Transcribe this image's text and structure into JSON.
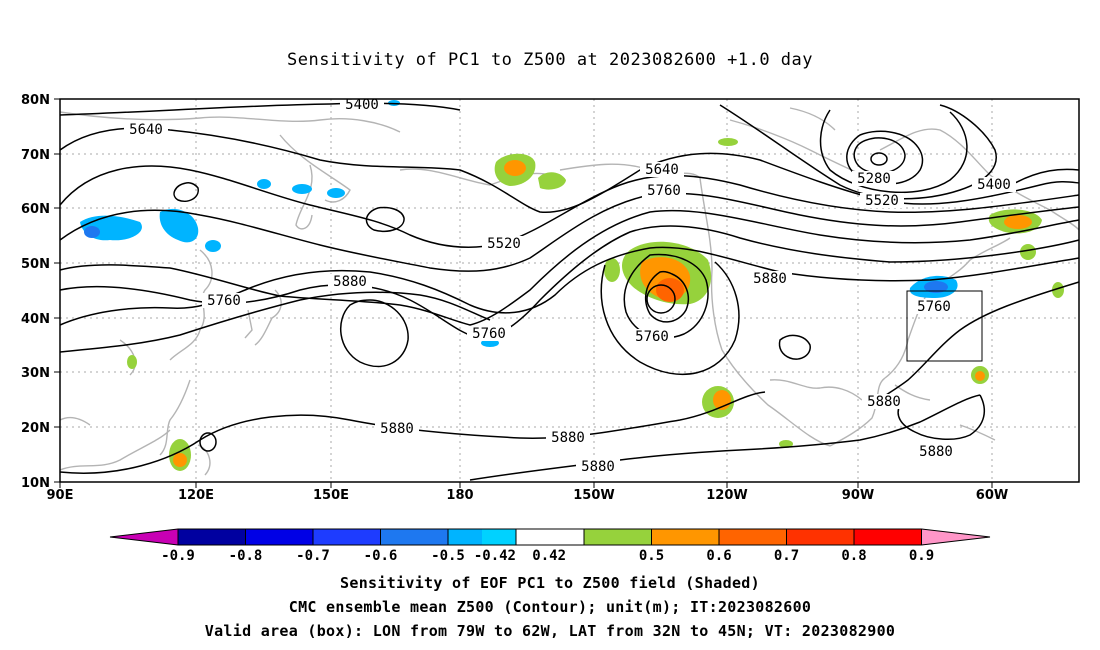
{
  "title": "Sensitivity of PC1 to Z500 at 2023082600 +1.0 day",
  "map": {
    "lon_ticks": [
      "90E",
      "120E",
      "150E",
      "180",
      "150W",
      "120W",
      "90W",
      "60W"
    ],
    "lat_ticks": [
      "80N",
      "70N",
      "60N",
      "50N",
      "40N",
      "30N",
      "20N",
      "10N"
    ],
    "contour_labels": [
      "5400",
      "5640",
      "5520",
      "5640",
      "5760",
      "5760",
      "5880",
      "5880",
      "5760",
      "5880",
      "5280",
      "5520",
      "5400",
      "5760",
      "5880",
      "5880",
      "5880",
      "5880",
      "5760"
    ],
    "valid_box": {
      "lon_min": -79,
      "lon_max": -62,
      "lat_min": 32,
      "lat_max": 45
    }
  },
  "colorbar": {
    "labels": [
      "-0.9",
      "-0.8",
      "-0.7",
      "-0.6",
      "-0.5",
      "-0.42",
      "0.42",
      "0.5",
      "0.6",
      "0.7",
      "0.8",
      "0.9"
    ],
    "colors": [
      "#c800b4",
      "#0000a0",
      "#0000e6",
      "#1e3cff",
      "#1e78f0",
      "#00b4ff",
      "#00d2ff",
      "#ffffff",
      "#96d23c",
      "#ff9600",
      "#ff6400",
      "#ff3200",
      "#ff0000",
      "#ff96c8"
    ]
  },
  "footer": {
    "line1": "Sensitivity of EOF PC1 to Z500 field (Shaded)",
    "line2": "CMC ensemble mean Z500 (Contour); unit(m); IT:2023082600",
    "line3": "Valid area (box): LON from 79W to 62W, LAT from 32N to 45N; VT: 2023082900"
  }
}
